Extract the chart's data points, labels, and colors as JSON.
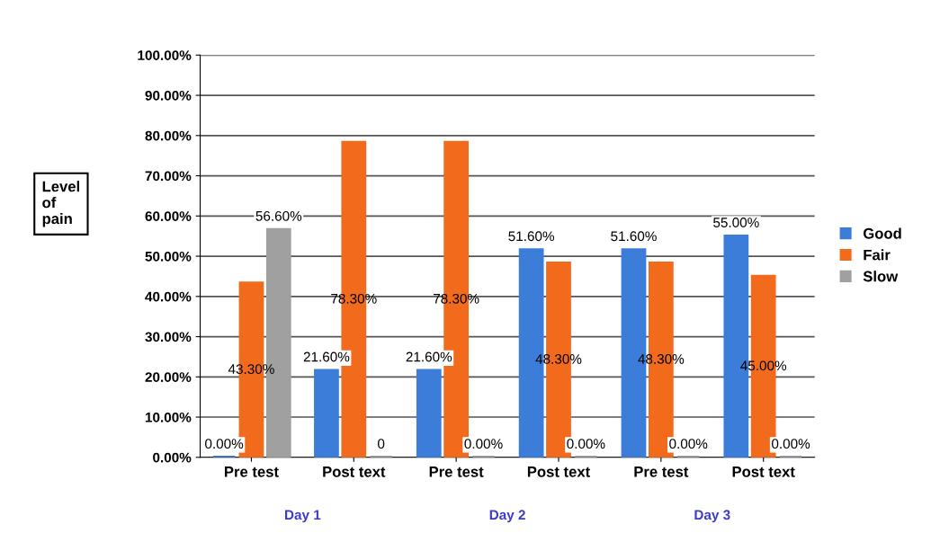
{
  "chart_data": {
    "type": "bar",
    "ylabel": "Level of pain",
    "categories": [
      "Pre test",
      "Post text",
      "Pre test",
      "Post text",
      "Pre test",
      "Post text"
    ],
    "series": [
      {
        "name": "Good",
        "color": "#3b7dd8",
        "values": [
          0,
          21.6,
          21.6,
          51.6,
          51.6,
          55.0
        ],
        "value_labels": [
          "0.00%",
          "21.60%",
          "21.60%",
          "51.60%",
          "51.60%",
          "55.00%"
        ]
      },
      {
        "name": "Fair",
        "color": "#f26a1b",
        "values": [
          43.3,
          78.3,
          78.3,
          48.3,
          48.3,
          45.0
        ],
        "value_labels": [
          "43.30%",
          "78.30%",
          "78.30%",
          "48.30%",
          "48.30%",
          "45.00%"
        ]
      },
      {
        "name": "Slow",
        "color": "#a0a0a0",
        "values": [
          56.6,
          0,
          0,
          0,
          0,
          0
        ],
        "value_labels": [
          "56.60%",
          "0",
          "0.00%",
          "0.00%",
          "0.00%",
          "0.00%"
        ]
      }
    ],
    "ylim": [
      0,
      100
    ],
    "yticks": [
      {
        "value": 0,
        "label": "0.00%"
      },
      {
        "value": 10,
        "label": "10.00%"
      },
      {
        "value": 20,
        "label": "20.00%"
      },
      {
        "value": 30,
        "label": "30.00%"
      },
      {
        "value": 40,
        "label": "40.00%"
      },
      {
        "value": 50,
        "label": "50.00%"
      },
      {
        "value": 60,
        "label": "60.00%"
      },
      {
        "value": 70,
        "label": "70.00%"
      },
      {
        "value": 80,
        "label": "80.00%"
      },
      {
        "value": 90,
        "label": "90.00%"
      },
      {
        "value": 100,
        "label": "100.00%"
      }
    ],
    "annotations": [
      "Day 1",
      "Day 2",
      "Day 3"
    ],
    "grid": "y",
    "legend": "right"
  }
}
